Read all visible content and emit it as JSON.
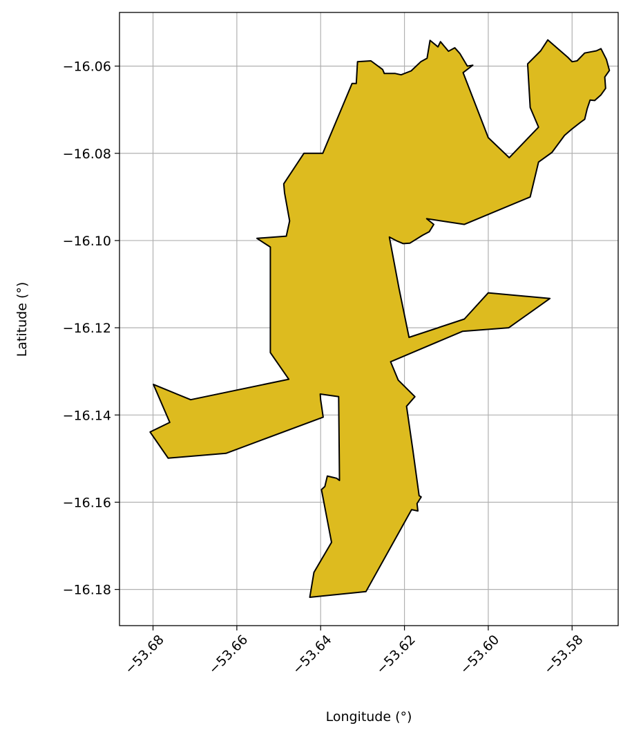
{
  "chart_data": {
    "type": "map",
    "xlabel": "Longitude (°)",
    "ylabel": "Latitude (°)",
    "xlim": [
      -53.688,
      -53.569
    ],
    "ylim": [
      -16.1883,
      -16.0477
    ],
    "xticks": [
      -53.68,
      -53.66,
      -53.64,
      -53.62,
      -53.6,
      -53.58
    ],
    "xtick_labels": [
      "−53.68",
      "−53.66",
      "−53.64",
      "−53.62",
      "−53.60",
      "−53.58"
    ],
    "yticks": [
      -16.06,
      -16.08,
      -16.1,
      -16.12,
      -16.14,
      -16.16,
      -16.18
    ],
    "ytick_labels": [
      "−16.06",
      "−16.08",
      "−16.10",
      "−16.12",
      "−16.14",
      "−16.16",
      "−16.18"
    ],
    "grid": true,
    "fill_color": "#DDBB1F",
    "edge_color": "#000000",
    "polygon": [
      [
        -53.6426,
        -16.1818
      ],
      [
        -53.6416,
        -16.1761
      ],
      [
        -53.6374,
        -16.1692
      ],
      [
        -53.6398,
        -16.1571
      ],
      [
        -53.639,
        -16.1564
      ],
      [
        -53.6384,
        -16.154
      ],
      [
        -53.6371,
        -16.1543
      ],
      [
        -53.6362,
        -16.1545
      ],
      [
        -53.6355,
        -16.155
      ],
      [
        -53.6357,
        -16.1358
      ],
      [
        -53.6401,
        -16.1352
      ],
      [
        -53.64,
        -16.1365
      ],
      [
        -53.6394,
        -16.1405
      ],
      [
        -53.6626,
        -16.1488
      ],
      [
        -53.6764,
        -16.1499
      ],
      [
        -53.6807,
        -16.1439
      ],
      [
        -53.676,
        -16.1417
      ],
      [
        -53.6799,
        -16.133
      ],
      [
        -53.671,
        -16.1365
      ],
      [
        -53.6476,
        -16.1318
      ],
      [
        -53.652,
        -16.1257
      ],
      [
        -53.652,
        -16.1125
      ],
      [
        -53.652,
        -16.1015
      ],
      [
        -53.6552,
        -16.0995
      ],
      [
        -53.6482,
        -16.099
      ],
      [
        -53.6474,
        -16.0955
      ],
      [
        -53.6486,
        -16.0891
      ],
      [
        -53.6488,
        -16.087
      ],
      [
        -53.644,
        -16.08
      ],
      [
        -53.6395,
        -16.08
      ],
      [
        -53.6325,
        -16.064
      ],
      [
        -53.6315,
        -16.064
      ],
      [
        -53.6312,
        -16.059
      ],
      [
        -53.628,
        -16.0588
      ],
      [
        -53.6252,
        -16.0608
      ],
      [
        -53.6248,
        -16.0617
      ],
      [
        -53.6222,
        -16.0617
      ],
      [
        -53.6208,
        -16.062
      ],
      [
        -53.6184,
        -16.0611
      ],
      [
        -53.6161,
        -16.059
      ],
      [
        -53.6146,
        -16.0582
      ],
      [
        -53.6139,
        -16.0541
      ],
      [
        -53.612,
        -16.0556
      ],
      [
        -53.6114,
        -16.0544
      ],
      [
        -53.6095,
        -16.0566
      ],
      [
        -53.608,
        -16.0558
      ],
      [
        -53.6068,
        -16.0571
      ],
      [
        -53.605,
        -16.06
      ],
      [
        -53.6037,
        -16.0598
      ],
      [
        -53.606,
        -16.0615
      ],
      [
        -53.6,
        -16.0764
      ],
      [
        -53.595,
        -16.081
      ],
      [
        -53.588,
        -16.074
      ],
      [
        -53.59,
        -16.0695
      ],
      [
        -53.5906,
        -16.0595
      ],
      [
        -53.5875,
        -16.0565
      ],
      [
        -53.5858,
        -16.054
      ],
      [
        -53.581,
        -16.058
      ],
      [
        -53.58,
        -16.059
      ],
      [
        -53.5788,
        -16.0588
      ],
      [
        -53.577,
        -16.057
      ],
      [
        -53.5742,
        -16.0565
      ],
      [
        -53.5731,
        -16.056
      ],
      [
        -53.5718,
        -16.0585
      ],
      [
        -53.5711,
        -16.061
      ],
      [
        -53.5722,
        -16.0625
      ],
      [
        -53.572,
        -16.0651
      ],
      [
        -53.5731,
        -16.0666
      ],
      [
        -53.5746,
        -16.0679
      ],
      [
        -53.5757,
        -16.0678
      ],
      [
        -53.5764,
        -16.0698
      ],
      [
        -53.577,
        -16.0722
      ],
      [
        -53.578,
        -16.0729
      ],
      [
        -53.58,
        -16.0744
      ],
      [
        -53.5818,
        -16.0759
      ],
      [
        -53.5848,
        -16.0798
      ],
      [
        -53.588,
        -16.082
      ],
      [
        -53.59,
        -16.09
      ],
      [
        -53.6057,
        -16.0963
      ],
      [
        -53.6147,
        -16.095
      ],
      [
        -53.613,
        -16.0963
      ],
      [
        -53.6141,
        -16.098
      ],
      [
        -53.6157,
        -16.0988
      ],
      [
        -53.6187,
        -16.1006
      ],
      [
        -53.6203,
        -16.1007
      ],
      [
        -53.6218,
        -16.1001
      ],
      [
        -53.6236,
        -16.0992
      ],
      [
        -53.6213,
        -16.111
      ],
      [
        -53.6189,
        -16.1222
      ],
      [
        -53.6057,
        -16.118
      ],
      [
        -53.6,
        -16.112
      ],
      [
        -53.5853,
        -16.1133
      ],
      [
        -53.5951,
        -16.12
      ],
      [
        -53.6061,
        -16.1208
      ],
      [
        -53.6233,
        -16.1278
      ],
      [
        -53.6215,
        -16.132
      ],
      [
        -53.6175,
        -16.1358
      ],
      [
        -53.6195,
        -16.138
      ],
      [
        -53.618,
        -16.148
      ],
      [
        -53.6165,
        -16.1585
      ],
      [
        -53.616,
        -16.1588
      ],
      [
        -53.617,
        -16.1603
      ],
      [
        -53.6168,
        -16.162
      ],
      [
        -53.6183,
        -16.1617
      ],
      [
        -53.6292,
        -16.1805
      ]
    ]
  }
}
